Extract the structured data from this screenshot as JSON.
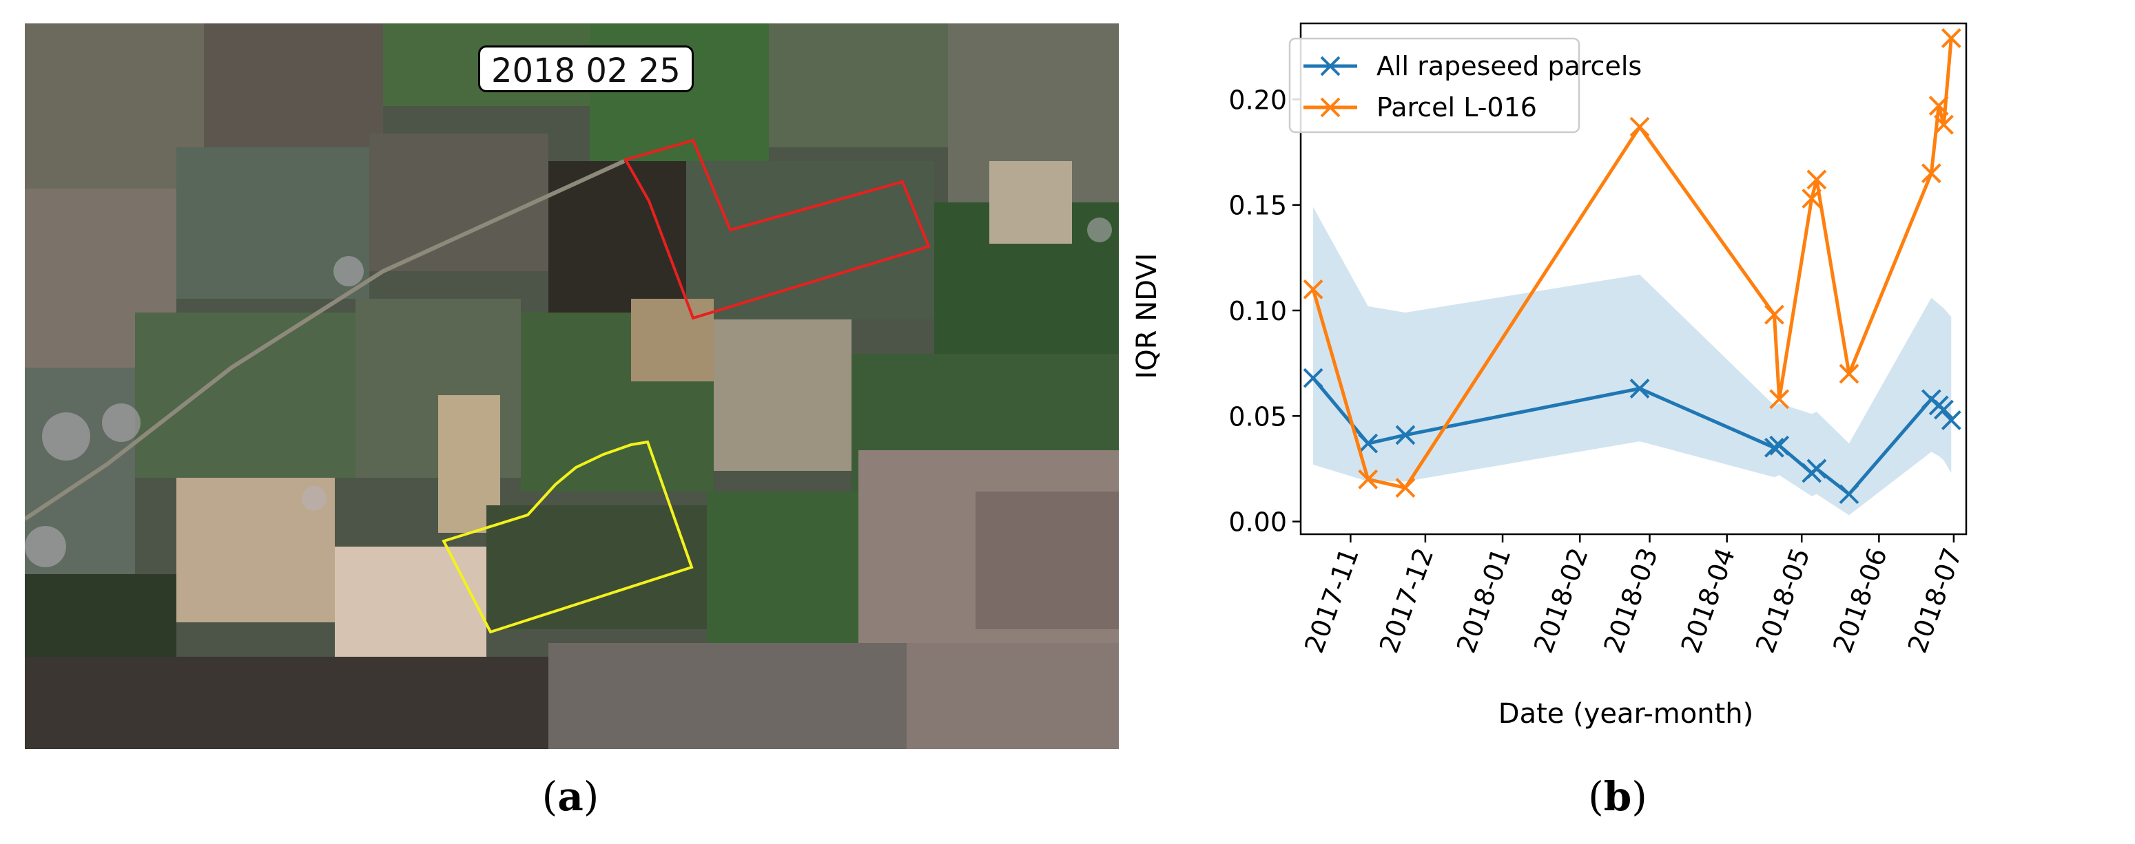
{
  "panel_a": {
    "caption_letter": "a",
    "date_label": "2018 02 25",
    "colors": {
      "red_parcel": "#e8201e",
      "yellow_parcel": "#f3f21c"
    }
  },
  "panel_b": {
    "caption_letter": "b"
  },
  "chart_data": {
    "type": "line",
    "title": "",
    "xlabel": "Date (year-month)",
    "ylabel": "IQR NDVI",
    "ylim": [
      -0.006,
      0.236
    ],
    "y_ticks": [
      0.0,
      0.05,
      0.1,
      0.15,
      0.2
    ],
    "y_tick_labels": [
      "0.00",
      "0.05",
      "0.10",
      "0.15",
      "0.20"
    ],
    "x_range": [
      "2017-10-12",
      "2018-07-06"
    ],
    "x_ticks": [
      "2017-11-01",
      "2017-12-01",
      "2018-01-01",
      "2018-02-01",
      "2018-03-01",
      "2018-04-01",
      "2018-05-01",
      "2018-06-01",
      "2018-07-01"
    ],
    "x_tick_labels": [
      "2017-11",
      "2017-12",
      "2018-01",
      "2018-02",
      "2018-03",
      "2018-04",
      "2018-05",
      "2018-06",
      "2018-07"
    ],
    "legend_position": "top-left",
    "series": [
      {
        "name": "All rapeseed parcels",
        "color": "#1f77b4",
        "marker": "x",
        "points": [
          {
            "x": "2017-10-17",
            "y": 0.068
          },
          {
            "x": "2017-11-08",
            "y": 0.037
          },
          {
            "x": "2017-11-23",
            "y": 0.041
          },
          {
            "x": "2018-02-25",
            "y": 0.063
          },
          {
            "x": "2018-04-20",
            "y": 0.035
          },
          {
            "x": "2018-04-22",
            "y": 0.036
          },
          {
            "x": "2018-05-05",
            "y": 0.023
          },
          {
            "x": "2018-05-07",
            "y": 0.025
          },
          {
            "x": "2018-05-20",
            "y": 0.013
          },
          {
            "x": "2018-06-22",
            "y": 0.058
          },
          {
            "x": "2018-06-25",
            "y": 0.055
          },
          {
            "x": "2018-06-27",
            "y": 0.053
          },
          {
            "x": "2018-06-30",
            "y": 0.048
          }
        ]
      },
      {
        "name": "Parcel L-016",
        "color": "#ff7f0e",
        "marker": "x",
        "points": [
          {
            "x": "2017-10-17",
            "y": 0.11
          },
          {
            "x": "2017-11-08",
            "y": 0.02
          },
          {
            "x": "2017-11-23",
            "y": 0.016
          },
          {
            "x": "2018-02-25",
            "y": 0.187
          },
          {
            "x": "2018-04-20",
            "y": 0.098
          },
          {
            "x": "2018-04-22",
            "y": 0.058
          },
          {
            "x": "2018-05-05",
            "y": 0.153
          },
          {
            "x": "2018-05-07",
            "y": 0.162
          },
          {
            "x": "2018-05-20",
            "y": 0.07
          },
          {
            "x": "2018-06-22",
            "y": 0.165
          },
          {
            "x": "2018-06-25",
            "y": 0.197
          },
          {
            "x": "2018-06-27",
            "y": 0.188
          },
          {
            "x": "2018-06-30",
            "y": 0.229
          }
        ]
      }
    ],
    "band": {
      "name": "rapeseed IQR spread",
      "color": "#1f77b4",
      "opacity": 0.2,
      "points": [
        {
          "x": "2017-10-17",
          "lo": 0.027,
          "hi": 0.149
        },
        {
          "x": "2017-11-08",
          "lo": 0.019,
          "hi": 0.102
        },
        {
          "x": "2017-11-23",
          "lo": 0.019,
          "hi": 0.099
        },
        {
          "x": "2018-02-25",
          "lo": 0.038,
          "hi": 0.117
        },
        {
          "x": "2018-04-20",
          "lo": 0.021,
          "hi": 0.055
        },
        {
          "x": "2018-04-22",
          "lo": 0.022,
          "hi": 0.056
        },
        {
          "x": "2018-05-05",
          "lo": 0.012,
          "hi": 0.051
        },
        {
          "x": "2018-05-07",
          "lo": 0.013,
          "hi": 0.052
        },
        {
          "x": "2018-05-20",
          "lo": 0.003,
          "hi": 0.037
        },
        {
          "x": "2018-06-22",
          "lo": 0.033,
          "hi": 0.106
        },
        {
          "x": "2018-06-25",
          "lo": 0.031,
          "hi": 0.103
        },
        {
          "x": "2018-06-27",
          "lo": 0.029,
          "hi": 0.101
        },
        {
          "x": "2018-06-30",
          "lo": 0.023,
          "hi": 0.097
        }
      ]
    }
  }
}
